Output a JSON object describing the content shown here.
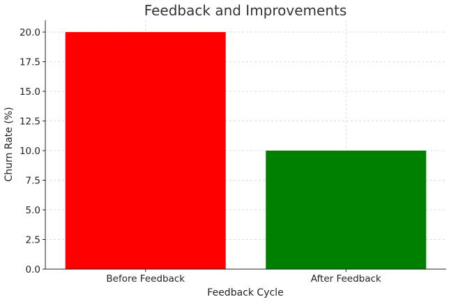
{
  "chart_data": {
    "type": "bar",
    "title": "Feedback and Improvements",
    "xlabel": "Feedback Cycle",
    "ylabel": "Churn Rate (%)",
    "categories": [
      "Before Feedback",
      "After Feedback"
    ],
    "values": [
      20.0,
      10.0
    ],
    "colors": [
      "#ff0000",
      "#008000"
    ],
    "ylim": [
      0,
      21
    ],
    "yticks": [
      "0.0",
      "2.5",
      "5.0",
      "7.5",
      "10.0",
      "12.5",
      "15.0",
      "17.5",
      "20.0"
    ],
    "grid": true,
    "legend": "none"
  }
}
